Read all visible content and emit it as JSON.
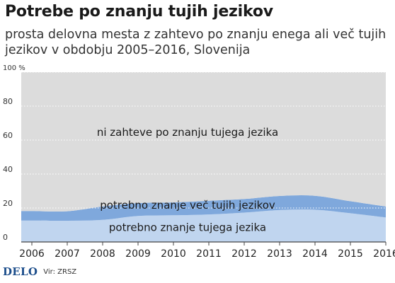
{
  "title": "Potrebe po znanju tujih jezikov",
  "subtitle": "prosta delovna mesta z zahtevo po znanju enega ali več tujih jezikov v obdobju 2005–2016, Slovenija",
  "logo": "DELO",
  "source": "Vir: ZRSZ",
  "colors": {
    "none": "#dcdcdc",
    "multiple": "#7fa8dc",
    "one": "#c0d5ef",
    "axis": "#444444",
    "grid": "#ffffff",
    "logo": "#1e4f8c"
  },
  "chart_data": {
    "type": "area",
    "stacked": true,
    "x": [
      2005.7,
      2006,
      2007,
      2008,
      2009,
      2010,
      2011,
      2012,
      2013,
      2014,
      2015,
      2016
    ],
    "xticks": [
      2006,
      2007,
      2008,
      2009,
      2010,
      2011,
      2012,
      2013,
      2014,
      2015,
      2016
    ],
    "xlim": [
      2005.7,
      2016
    ],
    "ylim": [
      0,
      100
    ],
    "yticks": [
      {
        "value": 0,
        "label": "0"
      },
      {
        "value": 20,
        "label": "20"
      },
      {
        "value": 40,
        "label": "40"
      },
      {
        "value": 60,
        "label": "60"
      },
      {
        "value": 80,
        "label": "80"
      },
      {
        "value": 100,
        "label": "100 %"
      }
    ],
    "grid": true,
    "series": [
      {
        "key": "one",
        "name": "potrebno znanje tujega jezika",
        "values": [
          12.6,
          12.6,
          12.5,
          13,
          15.3,
          15.7,
          16.2,
          17.3,
          18.8,
          19.0,
          16.9,
          14.4
        ]
      },
      {
        "key": "multiple",
        "name": "potrebno znanje več tujih jezikov",
        "values": [
          5.6,
          5.6,
          5.6,
          7.9,
          7.6,
          7.6,
          8.1,
          8.0,
          8.3,
          8.2,
          7.1,
          6.5
        ]
      },
      {
        "key": "none",
        "name": "ni zahteve po znanju tujega jezika",
        "values": [
          81.8,
          81.8,
          81.9,
          79.1,
          77.1,
          76.7,
          75.7,
          74.7,
          72.9,
          72.8,
          76.0,
          79.1
        ]
      }
    ]
  }
}
